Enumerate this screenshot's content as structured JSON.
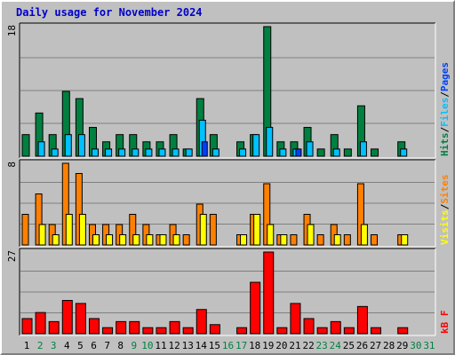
{
  "title": "Daily usage for November 2024",
  "colors": {
    "hits": "#008040",
    "files": "#00c0ff",
    "pages": "#0040ff",
    "visits": "#ff8000",
    "sites": "#ffff00",
    "kbytes": "#ff0000",
    "weekend_label": "#008040",
    "weekday_label": "#000000",
    "panel_bg": "#c0c0c0",
    "grid": "#808080"
  },
  "chart_data": [
    {
      "type": "bar",
      "panel": "hits_files_pages",
      "ymax_label": "18",
      "ylim": [
        0,
        18
      ],
      "legend": [
        {
          "name": "Pages",
          "color": "#0040ff"
        },
        {
          "name": "Files",
          "color": "#00c0ff"
        },
        {
          "name": "Hits",
          "color": "#008040"
        }
      ],
      "categories": [
        "1",
        "2",
        "3",
        "4",
        "5",
        "6",
        "7",
        "8",
        "9",
        "10",
        "11",
        "12",
        "13",
        "14",
        "15",
        "16",
        "17",
        "18",
        "19",
        "20",
        "21",
        "22",
        "23",
        "24",
        "25",
        "26",
        "27",
        "28",
        "29",
        "30",
        "31"
      ],
      "series": [
        {
          "name": "Hits",
          "values": [
            3,
            6,
            3,
            9,
            8,
            4,
            2,
            3,
            3,
            2,
            2,
            3,
            1,
            8,
            3,
            0,
            2,
            3,
            18,
            2,
            2,
            4,
            1,
            3,
            1,
            7,
            1,
            0,
            2,
            0,
            0
          ]
        },
        {
          "name": "Files",
          "values": [
            0,
            2,
            1,
            3,
            3,
            1,
            1,
            1,
            1,
            1,
            1,
            1,
            1,
            5,
            1,
            0,
            1,
            3,
            4,
            1,
            1,
            2,
            0,
            1,
            0,
            2,
            0,
            0,
            1,
            0,
            0
          ]
        },
        {
          "name": "Pages",
          "values": [
            0,
            0,
            0,
            0,
            0,
            0,
            0,
            0,
            0,
            0,
            0,
            0,
            0,
            2,
            0,
            0,
            0,
            0,
            0,
            0,
            1,
            0,
            0,
            0,
            0,
            0,
            0,
            0,
            0,
            0,
            0
          ]
        }
      ]
    },
    {
      "type": "bar",
      "panel": "sites_visits",
      "ymax_label": "8",
      "ylim": [
        0,
        8
      ],
      "legend": [
        {
          "name": "Sites",
          "color": "#ff8000"
        },
        {
          "name": "Visits",
          "color": "#ffff00"
        }
      ],
      "categories": [
        "1",
        "2",
        "3",
        "4",
        "5",
        "6",
        "7",
        "8",
        "9",
        "10",
        "11",
        "12",
        "13",
        "14",
        "15",
        "16",
        "17",
        "18",
        "19",
        "20",
        "21",
        "22",
        "23",
        "24",
        "25",
        "26",
        "27",
        "28",
        "29",
        "30",
        "31"
      ],
      "series": [
        {
          "name": "Visits",
          "values": [
            3,
            5,
            2,
            8,
            7,
            2,
            2,
            2,
            3,
            2,
            1,
            2,
            1,
            4,
            3,
            0,
            1,
            3,
            6,
            1,
            1,
            3,
            1,
            2,
            1,
            6,
            1,
            0,
            1,
            0,
            0
          ]
        },
        {
          "name": "Sites",
          "values": [
            0,
            2,
            1,
            3,
            3,
            1,
            1,
            1,
            1,
            1,
            1,
            1,
            0,
            3,
            0,
            0,
            1,
            3,
            2,
            1,
            0,
            2,
            0,
            1,
            0,
            2,
            0,
            0,
            1,
            0,
            0
          ]
        }
      ]
    },
    {
      "type": "bar",
      "panel": "kbytes",
      "ymax_label": "27",
      "ylim": [
        0,
        27
      ],
      "legend": [
        {
          "name": "kB F",
          "color": "#ff0000"
        }
      ],
      "categories": [
        "1",
        "2",
        "3",
        "4",
        "5",
        "6",
        "7",
        "8",
        "9",
        "10",
        "11",
        "12",
        "13",
        "14",
        "15",
        "16",
        "17",
        "18",
        "19",
        "20",
        "21",
        "22",
        "23",
        "24",
        "25",
        "26",
        "27",
        "28",
        "29",
        "30",
        "31"
      ],
      "series": [
        {
          "name": "kB F",
          "values": [
            5,
            7,
            4,
            11,
            10,
            5,
            2,
            4,
            4,
            2,
            2,
            4,
            2,
            8,
            3,
            0,
            2,
            17,
            27,
            2,
            10,
            5,
            2,
            4,
            2,
            9,
            2,
            0,
            2,
            0,
            0
          ]
        }
      ]
    }
  ],
  "day_labels": [
    "1",
    "2",
    "3",
    "4",
    "5",
    "6",
    "7",
    "8",
    "9",
    "10",
    "11",
    "12",
    "13",
    "14",
    "15",
    "16",
    "17",
    "18",
    "19",
    "20",
    "21",
    "22",
    "23",
    "24",
    "25",
    "26",
    "27",
    "28",
    "29",
    "30",
    "31"
  ],
  "weekend_days": [
    2,
    3,
    9,
    10,
    16,
    17,
    23,
    24,
    30,
    31
  ]
}
